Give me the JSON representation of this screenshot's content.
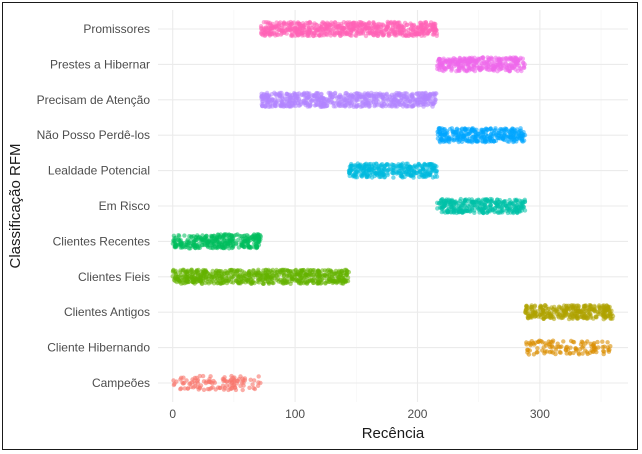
{
  "chart_data": {
    "type": "scatter",
    "xlabel": "Recência",
    "ylabel": "Classificação RFM",
    "xlim": [
      -12,
      372
    ],
    "x_ticks": [
      0,
      100,
      200,
      300
    ],
    "x_tick_labels": [
      "0",
      "100",
      "200",
      "300"
    ],
    "grid": true,
    "categories": [
      "Campeões",
      "Cliente Hibernando",
      "Clientes Antigos",
      "Clientes Fieis",
      "Clientes Recentes",
      "Em Risco",
      "Lealdade Potencial",
      "Não Posso Perdê-los",
      "Precisam de Atenção",
      "Prestes a Hibernar",
      "Promissores"
    ],
    "series": [
      {
        "category": "Campeões",
        "x_min": 0,
        "x_max": 72,
        "color": "#F8766D",
        "density": "sparse"
      },
      {
        "category": "Cliente Hibernando",
        "x_min": 288,
        "x_max": 358,
        "color": "#DB8E00",
        "density": "sparse"
      },
      {
        "category": "Clientes Antigos",
        "x_min": 288,
        "x_max": 360,
        "color": "#AEA200",
        "density": "dense"
      },
      {
        "category": "Clientes Fieis",
        "x_min": 0,
        "x_max": 144,
        "color": "#64B200",
        "density": "dense"
      },
      {
        "category": "Clientes Recentes",
        "x_min": 0,
        "x_max": 72,
        "color": "#00BD5C",
        "density": "dense"
      },
      {
        "category": "Em Risco",
        "x_min": 216,
        "x_max": 288,
        "color": "#00C1A7",
        "density": "dense"
      },
      {
        "category": "Lealdade Potencial",
        "x_min": 144,
        "x_max": 216,
        "color": "#00BADE",
        "density": "dense"
      },
      {
        "category": "Não Posso Perdê-los",
        "x_min": 216,
        "x_max": 288,
        "color": "#00A6FF",
        "density": "dense"
      },
      {
        "category": "Precisam de Atenção",
        "x_min": 72,
        "x_max": 216,
        "color": "#B385FF",
        "density": "dense"
      },
      {
        "category": "Prestes a Hibernar",
        "x_min": 216,
        "x_max": 288,
        "color": "#EF67EB",
        "density": "dense"
      },
      {
        "category": "Promissores",
        "x_min": 72,
        "x_max": 216,
        "color": "#FF63B6",
        "density": "dense"
      }
    ]
  }
}
